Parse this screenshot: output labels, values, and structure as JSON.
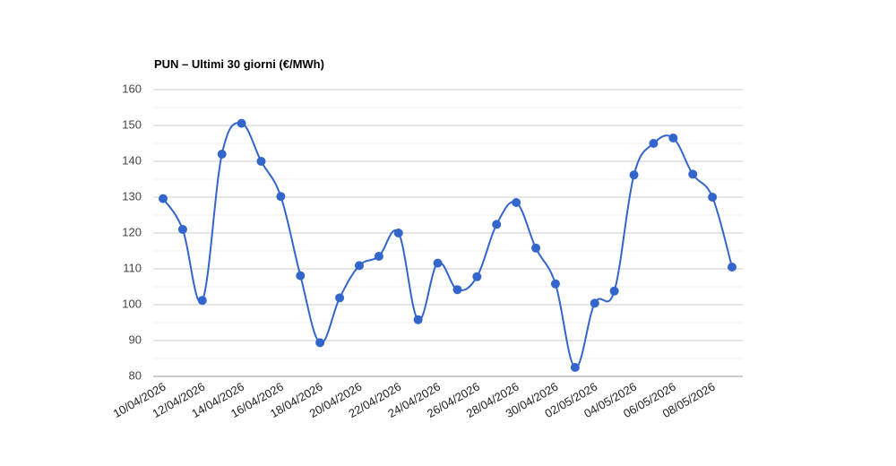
{
  "chart_data": {
    "type": "line",
    "title": "PUN – Ultimi 30 giorni (€/MWh)",
    "categories": [
      "10/04/2026",
      null,
      "12/04/2026",
      null,
      "14/04/2026",
      null,
      "16/04/2026",
      null,
      "18/04/2026",
      null,
      "20/04/2026",
      null,
      "22/04/2026",
      null,
      "24/04/2026",
      null,
      "26/04/2026",
      null,
      "28/04/2026",
      null,
      "30/04/2026",
      null,
      "02/05/2026",
      null,
      "04/05/2026",
      null,
      "06/05/2026",
      null,
      "08/05/2026",
      null
    ],
    "series": [
      {
        "color": "#3366cc",
        "values": [
          129.6,
          121,
          101.2,
          142,
          150.6,
          140,
          130.2,
          108.1,
          89.4,
          101.9,
          110.9,
          113.5,
          120,
          95.8,
          111.6,
          104.2,
          107.8,
          122.4,
          128.5,
          115.8,
          105.8,
          82.5,
          100.4,
          103.8,
          136.2,
          145,
          146.5,
          136.4,
          130,
          110.5
        ]
      }
    ],
    "ylim": [
      80,
      160
    ],
    "yticks": [
      80,
      90,
      100,
      110,
      120,
      130,
      140,
      150,
      160
    ],
    "grid": true,
    "smooth": true
  }
}
